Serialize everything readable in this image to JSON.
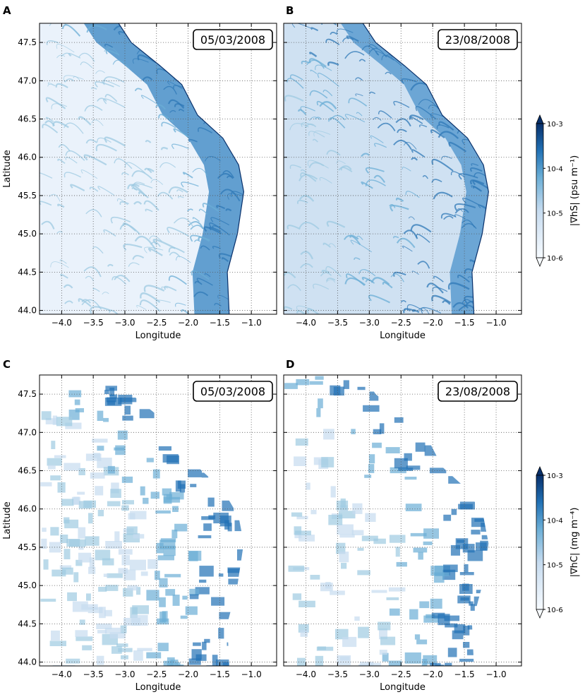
{
  "figure": {
    "colorbar_top": {
      "label": "|∇hS| (psu m⁻¹)",
      "ticks": [
        "10-3",
        "10-4",
        "10-5",
        "10-6"
      ]
    },
    "colorbar_bottom": {
      "label": "|∇hC| (mg m⁻⁴)",
      "ticks": [
        "10-3",
        "10-4",
        "10-5",
        "10-6"
      ]
    },
    "colors": {
      "colormap_low": "#f7fbff",
      "colormap_high": "#08306b",
      "land": "#ffffff",
      "coast": "#08306b",
      "grid": "#555555"
    }
  },
  "chart_data": [
    {
      "type": "heatmap",
      "panel_label": "A",
      "date_label": "05/03/2008",
      "xlabel": "Longitude",
      "ylabel": "Latitude",
      "xlim": [
        -4.35,
        -0.6
      ],
      "ylim": [
        43.95,
        47.75
      ],
      "xticks": [
        -4.0,
        -3.5,
        -3.0,
        -2.5,
        -2.0,
        -1.5,
        -1.0
      ],
      "yticks": [
        44.0,
        44.5,
        45.0,
        45.5,
        46.0,
        46.5,
        47.0,
        47.5
      ],
      "xtick_labels": [
        "−4.0",
        "−3.5",
        "−3.0",
        "−2.5",
        "−2.0",
        "−1.5",
        "−1.0"
      ],
      "ytick_labels": [
        "44.0",
        "44.5",
        "45.0",
        "45.5",
        "46.0",
        "46.5",
        "47.0",
        "47.5"
      ],
      "grid": true,
      "variable": "|∇hS|"
    },
    {
      "type": "heatmap",
      "panel_label": "B",
      "date_label": "23/08/2008",
      "xlabel": "Longitude",
      "ylabel": "",
      "xlim": [
        -4.35,
        -0.6
      ],
      "ylim": [
        43.95,
        47.75
      ],
      "xticks": [
        -4.0,
        -3.5,
        -3.0,
        -2.5,
        -2.0,
        -1.5,
        -1.0
      ],
      "yticks": [
        44.0,
        44.5,
        45.0,
        45.5,
        46.0,
        46.5,
        47.0,
        47.5
      ],
      "xtick_labels": [
        "−4.0",
        "−3.5",
        "−3.0",
        "−2.5",
        "−2.0",
        "−1.5",
        "−1.0"
      ],
      "ytick_labels": [],
      "grid": true,
      "variable": "|∇hS|"
    },
    {
      "type": "heatmap",
      "panel_label": "C",
      "date_label": "05/03/2008",
      "xlabel": "Longitude",
      "ylabel": "Latitude",
      "xlim": [
        -4.35,
        -0.6
      ],
      "ylim": [
        43.95,
        47.75
      ],
      "xticks": [
        -4.0,
        -3.5,
        -3.0,
        -2.5,
        -2.0,
        -1.5,
        -1.0
      ],
      "yticks": [
        44.0,
        44.5,
        45.0,
        45.5,
        46.0,
        46.5,
        47.0,
        47.5
      ],
      "xtick_labels": [
        "−4.0",
        "−3.5",
        "−3.0",
        "−2.5",
        "−2.0",
        "−1.5",
        "−1.0"
      ],
      "ytick_labels": [
        "44.0",
        "44.5",
        "45.0",
        "45.5",
        "46.0",
        "46.5",
        "47.0",
        "47.5"
      ],
      "grid": true,
      "variable": "|∇hC|"
    },
    {
      "type": "heatmap",
      "panel_label": "D",
      "date_label": "23/08/2008",
      "xlabel": "Longitude",
      "ylabel": "",
      "xlim": [
        -4.35,
        -0.6
      ],
      "ylim": [
        43.95,
        47.75
      ],
      "xticks": [
        -4.0,
        -3.5,
        -3.0,
        -2.5,
        -2.0,
        -1.5,
        -1.0
      ],
      "yticks": [
        44.0,
        44.5,
        45.0,
        45.5,
        46.0,
        46.5,
        47.0,
        47.5
      ],
      "xtick_labels": [
        "−4.0",
        "−3.5",
        "−3.0",
        "−2.5",
        "−2.0",
        "−1.5",
        "−1.0"
      ],
      "ytick_labels": [],
      "grid": true,
      "variable": "|∇hC|"
    }
  ]
}
